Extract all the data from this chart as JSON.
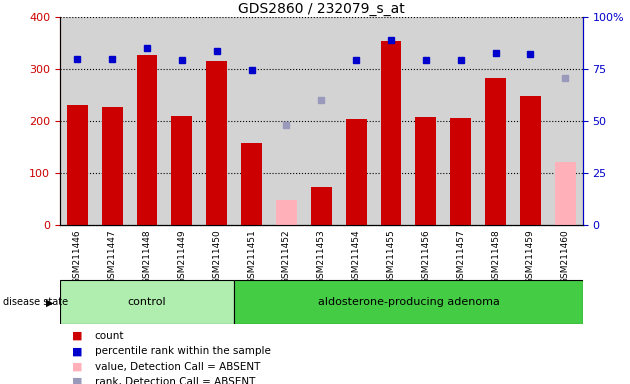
{
  "title": "GDS2860 / 232079_s_at",
  "samples": [
    "GSM211446",
    "GSM211447",
    "GSM211448",
    "GSM211449",
    "GSM211450",
    "GSM211451",
    "GSM211452",
    "GSM211453",
    "GSM211454",
    "GSM211455",
    "GSM211456",
    "GSM211457",
    "GSM211458",
    "GSM211459",
    "GSM211460"
  ],
  "counts": [
    230,
    226,
    327,
    210,
    315,
    157,
    null,
    72,
    204,
    355,
    208,
    206,
    282,
    249,
    null
  ],
  "counts_absent": [
    null,
    null,
    null,
    null,
    null,
    null,
    48,
    null,
    null,
    null,
    null,
    null,
    null,
    null,
    120
  ],
  "percentile_ranks": [
    320,
    320,
    340,
    318,
    335,
    298,
    null,
    null,
    318,
    356,
    318,
    318,
    332,
    330,
    null
  ],
  "percentile_ranks_absent": [
    null,
    null,
    null,
    null,
    null,
    null,
    192,
    240,
    null,
    null,
    null,
    null,
    null,
    null,
    283
  ],
  "control_indices": [
    0,
    1,
    2,
    3,
    4
  ],
  "adenoma_indices": [
    5,
    6,
    7,
    8,
    9,
    10,
    11,
    12,
    13,
    14
  ],
  "ylim_left": [
    0,
    400
  ],
  "ylim_right": [
    0,
    100
  ],
  "yticks_left": [
    0,
    100,
    200,
    300,
    400
  ],
  "yticks_right": [
    0,
    25,
    50,
    75,
    100
  ],
  "bar_color": "#cc0000",
  "absent_bar_color": "#ffb0b8",
  "rank_color": "#0000cc",
  "rank_absent_color": "#9999bb",
  "bg_color": "#d3d3d3",
  "control_bg": "#b0eeb0",
  "adenoma_bg": "#44cc44",
  "group_band_color": "#228b22",
  "grid_color": "black",
  "legend_items": [
    "count",
    "percentile rank within the sample",
    "value, Detection Call = ABSENT",
    "rank, Detection Call = ABSENT"
  ]
}
